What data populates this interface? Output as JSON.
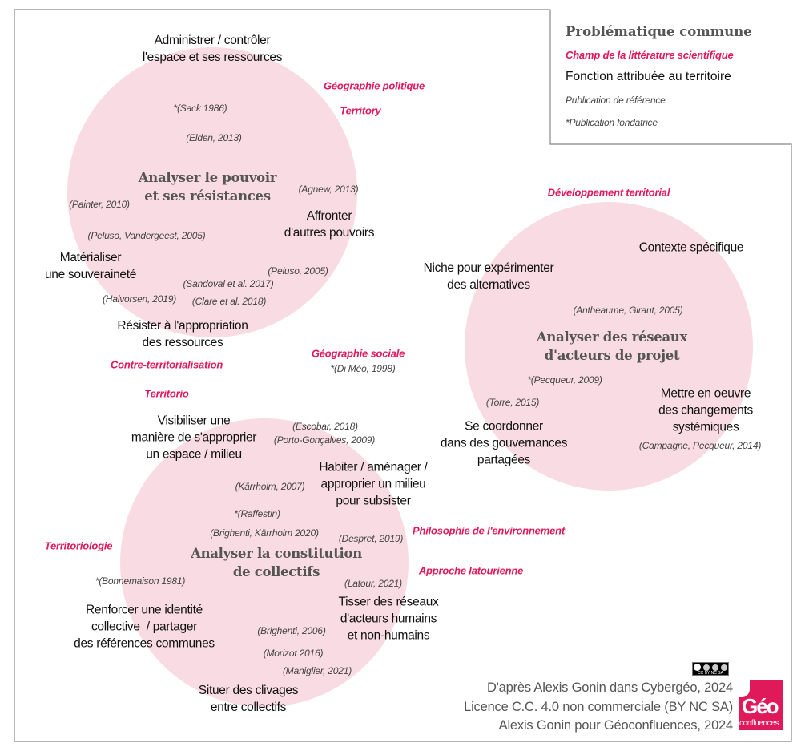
{
  "colors": {
    "accent": "#e0195a",
    "circle": "#f9dce3",
    "title": "#555555"
  },
  "legend": {
    "problematique": "Problématique commune",
    "champ": "Champ de la littérature scientifique",
    "fonction": "Fonction attribuée au territoire",
    "publication": "Publication de référence",
    "fondatrice": "*Publication fondatrice"
  },
  "titles": [
    "Analyser le pouvoir\net ses résistances",
    "Analyser des réseaux\nd'acteurs de projet",
    "Analyser la constitution\nde collectifs"
  ],
  "functions": [
    "Administrer / contrôler\nl'espace et ses ressources",
    "Affronter\nd'autres pouvoirs",
    "Matérialiser\nune souveraineté",
    "Résister à l'appropriation\ndes ressources",
    "Niche pour expérimenter\ndes alternatives",
    "Contexte spécifique",
    "Mettre en oeuvre\ndes changements\nsystémiques",
    "Se coordonner\ndans des gouvernances\npartagées",
    "Visibiliser une\nmanière de s'approprier\nun espace / milieu",
    "Habiter / aménager /\napproprier un milieu\npour subsister",
    "Renforcer une identité\ncollective  / partager\ndes références communes",
    "Tisser des réseaux\nd'acteurs humains\net non-humains",
    "Situer des clivages\nentre collectifs"
  ],
  "fields": [
    "Géographie politique",
    "Territory",
    "Développement territorial",
    "Géographie sociale",
    "Contre-territorialisation",
    "Territorio",
    "Philosophie de l'environnement",
    "Territoriologie",
    "Approche latourienne"
  ],
  "references": [
    "*(Sack 1986)",
    "(Elden, 2013)",
    "(Agnew, 2013)",
    "(Painter, 2010)",
    "(Peluso, Vandergeest, 2005)",
    "(Peluso, 2005)",
    "(Sandoval et al. 2017)",
    "(Halvorsen, 2019)",
    "(Clare et al. 2018)",
    "(Antheaume, Giraut, 2005)",
    "*(Pecqueur, 2009)",
    "(Torre, 2015)",
    "(Campagne, Pecqueur, 2014)",
    "*(Di Méo, 1998)",
    "(Escobar, 2018)",
    "(Porto-Gonçalves, 2009)",
    "(Kärrholm, 2007)",
    "*(Raffestin)",
    "(Brighenti, Kärrholm 2020)",
    "(Despret, 2019)",
    "*(Bonnemaison 1981)",
    "(Latour, 2021)",
    "(Brighenti, 2006)",
    "(Morizot 2016)",
    "(Maniglier, 2021)"
  ],
  "credits": [
    "D'après Alexis Gonin dans Cybergéo, 2024",
    "Licence C.C. 4.0 non commerciale (BY NC SA)",
    "Alexis Gonin pour Géoconfluences, 2024"
  ],
  "license_badge": "cc by nc sa",
  "logo": {
    "text": "Géo",
    "sub": "confluences"
  }
}
